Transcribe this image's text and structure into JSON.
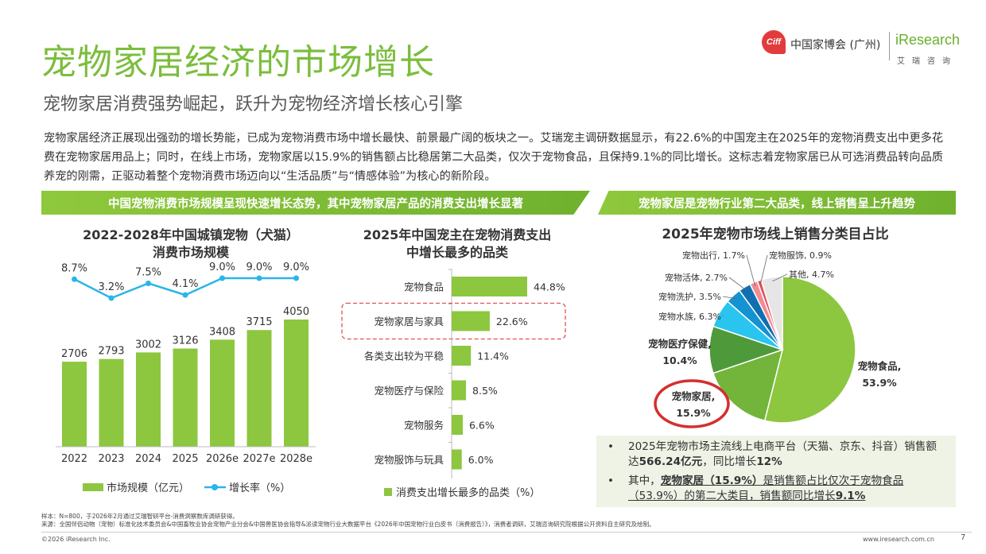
{
  "header": {
    "title": "宠物家居经济的市场增长",
    "subtitle": "宠物家居消费强势崛起，跃升为宠物经济增长核心引擎",
    "logo_ciff_mark": "Ciff",
    "logo_ciff_name": "中国家博会 (广州)",
    "logo_ir": "iResearch",
    "logo_ir_cn": "艾瑞咨询"
  },
  "intro": "宠物家居经济正展现出强劲的增长势能，已成为宠物消费市场中增长最快、前景最广阔的板块之一。艾瑞宠主调研数据显示，有22.6%的中国宠主在2025年的宠物消费支出中更多花费在宠物家居用品上；同时，在线上市场，宠物家居以15.9%的销售额占比稳居第二大品类，仅次于宠物食品，且保持9.1%的同比增长。这标志着宠物家居已从可选消费品转向品质养宠的刚需，正驱动着整个宠物消费市场迈向以“生活品质”与“情感体验”为核心的新阶段。",
  "banners": {
    "left": "中国宠物消费市场规模呈现快速增长态势，其中宠物家居产品的消费支出增长显著",
    "right": "宠物家居是宠物行业第二大品类，线上销售呈上升趋势"
  },
  "chart_data": [
    {
      "type": "bar",
      "title_line1": "2022-2028年中国城镇宠物（犬猫）",
      "title_line2": "消费市场规模",
      "categories": [
        "2022",
        "2023",
        "2024",
        "2025",
        "2026e",
        "2027e",
        "2028e"
      ],
      "series": [
        {
          "name": "市场规模（亿元）",
          "type": "bar",
          "values": [
            2706,
            2793,
            3002,
            3126,
            3408,
            3715,
            4050
          ],
          "color": "#8dc63f"
        },
        {
          "name": "增长率（%）",
          "type": "line",
          "values": [
            8.7,
            3.2,
            7.5,
            4.1,
            9.0,
            9.0,
            9.0
          ],
          "labels": [
            "8.7%",
            "3.2%",
            "7.5%",
            "4.1%",
            "9.0%",
            "9.0%",
            "9.0%"
          ],
          "color": "#29b6e8"
        }
      ],
      "legend": "bottom"
    },
    {
      "type": "bar",
      "orientation": "horizontal",
      "title_line1": "2025年中国宠主在宠物消费支出",
      "title_line2": "中增长最多的品类",
      "categories": [
        "宠物食品",
        "宠物家居与家具",
        "各类支出较为平稳",
        "宠物医疗与保险",
        "宠物服务",
        "宠物服饰与玩具"
      ],
      "values": [
        44.8,
        22.6,
        11.4,
        8.5,
        6.6,
        6.0
      ],
      "labels": [
        "44.8%",
        "22.6%",
        "11.4%",
        "8.5%",
        "6.6%",
        "6.0%"
      ],
      "series_name": "消费支出增长最多的品类（%）",
      "highlight": "宠物家居与家具",
      "color": "#8dc63f",
      "legend": "bottom"
    },
    {
      "type": "pie",
      "title": "2025年宠物市场线上销售分类目占比",
      "slices": [
        {
          "label": "宠物食品,",
          "value": 53.9,
          "value_label": "53.9%",
          "color": "#8dc63f"
        },
        {
          "label": "宠物家居,",
          "value": 15.9,
          "value_label": "15.9%",
          "color": "#72b53a"
        },
        {
          "label": "宠物医疗保健,",
          "value": 10.4,
          "value_label": "10.4%",
          "color": "#4e9a3a"
        },
        {
          "label": "宠物水族, 6.3%",
          "value": 6.3,
          "color": "#29c5ef"
        },
        {
          "label": "宠物洗护, 3.5%",
          "value": 3.5,
          "color": "#1592d1"
        },
        {
          "label": "宠物活体, 2.7%",
          "value": 2.7,
          "color": "#0f6fb0"
        },
        {
          "label": "宠物出行, 1.7%",
          "value": 1.7,
          "color": "#f28b95"
        },
        {
          "label": "宠物服饰, 0.9%",
          "value": 0.9,
          "color": "#e84d5b"
        },
        {
          "label": "其他, 4.7%",
          "value": 4.7,
          "color": "#e6e6e6"
        }
      ]
    }
  ],
  "notes": {
    "b1_a": "2025年宠物市场主流线上电商平台（天猫、京东、抖音）销售额达",
    "b1_b": "566.24亿元",
    "b1_c": "，同比增长",
    "b1_d": "12%",
    "b2_a": "其中，",
    "b2_b": "宠物家居（15.9%）",
    "b2_c": "是销售额占比仅次于宠物食品（53.9%）的第二大类目，销售额同比增长",
    "b2_d": "9.1%"
  },
  "footer": {
    "sample": "样本：N=800，于2026年2月通过艾瑞智研平台-消费洞察数库调研获得。",
    "source": "来源：全国伴侣动物（宠物）标准化技术委员会&中国畜牧业协会宠物产业分会&中国兽医协会指导&派读宠物行业大数据平台《2026年中国宠物行业白皮书（消费报告）》，消费者调研，艾瑞咨询研究院根据公开资料自主研究及绘制。",
    "copyright": "©2026 iResearch Inc.",
    "website": "www.iresearch.com.cn",
    "page": "7"
  }
}
